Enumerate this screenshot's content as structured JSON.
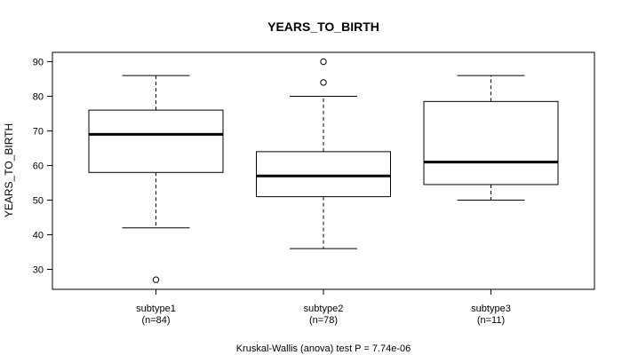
{
  "chart_data": {
    "type": "boxplot",
    "title": "YEARS_TO_BIRTH",
    "xlabel": "",
    "ylabel": "YEARS_TO_BIRTH",
    "ylim": [
      24,
      92
    ],
    "yticks": [
      30,
      40,
      50,
      60,
      70,
      80,
      90
    ],
    "footnote": "Kruskal-Wallis (anova) test P = 7.74e-06",
    "groups": [
      {
        "name": "subtype1",
        "n_label": "(n=84)",
        "whisker_low": 42,
        "q1": 58,
        "median": 69,
        "q3": 76,
        "whisker_high": 86,
        "outliers": [
          27
        ]
      },
      {
        "name": "subtype2",
        "n_label": "(n=78)",
        "whisker_low": 36,
        "q1": 51,
        "median": 57,
        "q3": 64,
        "whisker_high": 80,
        "outliers": [
          84,
          90
        ]
      },
      {
        "name": "subtype3",
        "n_label": "(n=11)",
        "whisker_low": 50,
        "q1": 54.5,
        "median": 61,
        "q3": 78.5,
        "whisker_high": 86,
        "outliers": []
      }
    ]
  }
}
